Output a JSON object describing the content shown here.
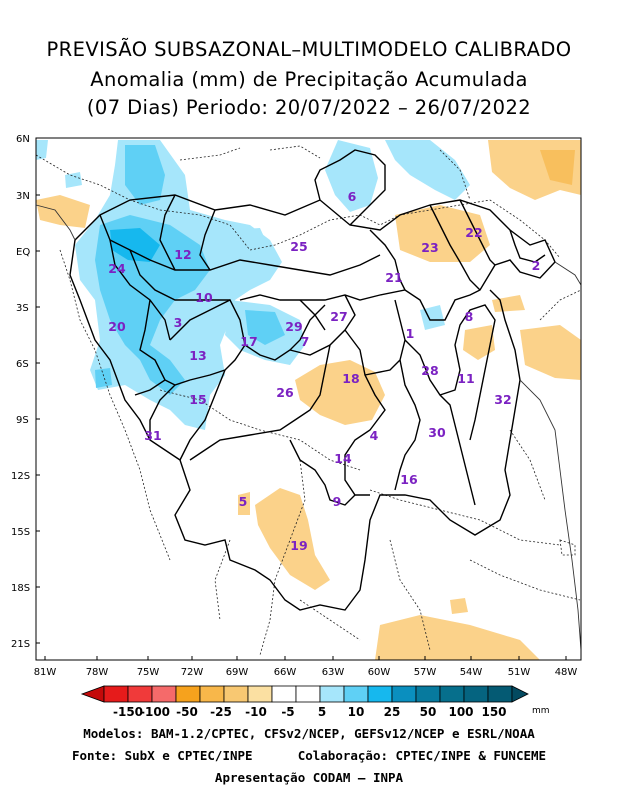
{
  "title": {
    "line1": "PREVISÃO SUBSAZONAL–MULTIMODELO CALIBRADO",
    "line2": "Anomalia (mm) de Precipitação Acumulada",
    "line3": "(07 Dias) Periodo: 20/07/2022 – 26/07/2022"
  },
  "lat_labels": [
    "6N",
    "3N",
    "EQ",
    "3S",
    "6S",
    "9S",
    "12S",
    "15S",
    "18S",
    "21S"
  ],
  "lon_labels": [
    "81W",
    "78W",
    "75W",
    "72W",
    "69W",
    "66W",
    "63W",
    "60W",
    "57W",
    "54W",
    "51W",
    "48W"
  ],
  "basins": [
    "1",
    "2",
    "3",
    "4",
    "5",
    "6",
    "7",
    "8",
    "9",
    "10",
    "11",
    "12",
    "13",
    "14",
    "15",
    "16",
    "17",
    "18",
    "19",
    "20",
    "21",
    "22",
    "23",
    "24",
    "25",
    "26",
    "27",
    "28",
    "29",
    "30",
    "31",
    "32"
  ],
  "colorbar": {
    "ticks": [
      "-150",
      "-100",
      "-50",
      "-25",
      "-10",
      "-5",
      "5",
      "10",
      "25",
      "50",
      "100",
      "150"
    ],
    "unit": "mm",
    "colors": [
      "#d7191c",
      "#ef4f4f",
      "#f59c9c",
      "#f6a21d",
      "#f6c25a",
      "#fbe3a6",
      "#ffffff",
      "#a6e6fb",
      "#5fd0f5",
      "#16b8ee",
      "#0a8fbf",
      "#066f8c",
      "#045a73"
    ]
  },
  "footer": {
    "line1": "Modelos: BAM-1.2/CPTEC, CFSv2/NCEP, GEFSv12/NCEP e ESRL/NOAA",
    "line2": "Fonte: SubX e CPTEC/INPE      Colaboração: CPTEC/INPE & FUNCEME",
    "line3": "Apresentação CODAM – INPA"
  }
}
